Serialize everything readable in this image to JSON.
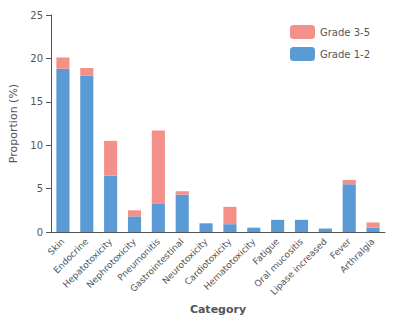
{
  "chart_data": {
    "type": "bar",
    "xlabel": "Category",
    "ylabel": "Proportion (%)",
    "categories": [
      "Skin",
      "Endocrine",
      "Hepatotoxicity",
      "Nephrotoxicity",
      "Pneumonitis",
      "Gastrointestinal",
      "Neurotoxicity",
      "Cardiotoxicity",
      "Hematotoxicity",
      "Fatigue",
      "Oral mucositis",
      "Lipase increased",
      "Fever",
      "Arthralgia"
    ],
    "series": [
      {
        "name": "Grade 1-2",
        "color": "#5B9BD5",
        "values": [
          18.8,
          18.0,
          6.5,
          1.8,
          3.3,
          4.3,
          1.0,
          0.9,
          0.5,
          1.4,
          1.4,
          0.4,
          5.5,
          0.5
        ]
      },
      {
        "name": "Grade 3-5",
        "color": "#F4908A",
        "values": [
          1.3,
          0.9,
          4.0,
          0.7,
          8.4,
          0.4,
          0.0,
          2.0,
          0.0,
          0.0,
          0.0,
          0.0,
          0.5,
          0.6
        ]
      }
    ],
    "stacked": true,
    "ylim": [
      0,
      25
    ],
    "yticks": [
      0,
      5,
      10,
      15,
      20,
      25
    ],
    "grid": false,
    "legend": "upper right"
  }
}
